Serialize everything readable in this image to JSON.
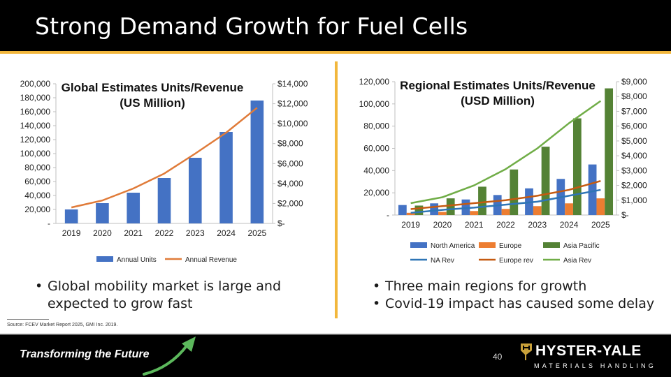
{
  "header": {
    "title": "Strong Demand Growth for Fuel Cells"
  },
  "left": {
    "bullets": [
      "Global mobility market is large and expected to grow fast"
    ]
  },
  "right": {
    "bullets": [
      "Three main regions for growth",
      "Covid-19 impact has caused some delay"
    ]
  },
  "source": "Source: FCEV Market Report 2025, GMI Inc. 2019.",
  "footer": {
    "tagline": "Transforming the Future",
    "page_number": "40",
    "logo_name": "HYSTER-YALE",
    "logo_sub": "MATERIALS HANDLING"
  },
  "colors": {
    "accent_gold": "#f2b73c",
    "bar_blue": "#4472c4",
    "bar_orange": "#ed7d31",
    "bar_green": "#548235",
    "line_orange": "#e07b39",
    "line_na": "#2e75b6",
    "line_europe": "#c55a11",
    "line_asia": "#70ad47",
    "arrow_green": "#5cb85c"
  },
  "chart_data": [
    {
      "type": "bar",
      "title": "Global Estimates Units/Revenue\n(US Million)",
      "categories": [
        "2019",
        "2020",
        "2021",
        "2022",
        "2023",
        "2024",
        "2025"
      ],
      "series": [
        {
          "name": "Annual Units",
          "kind": "bar",
          "axis": "left",
          "values": [
            20000,
            29000,
            44000,
            65000,
            94000,
            131000,
            176000
          ]
        },
        {
          "name": "Annual Revenue",
          "kind": "line",
          "axis": "right",
          "values": [
            1600,
            2300,
            3500,
            5000,
            7000,
            9100,
            11600
          ]
        }
      ],
      "ylim_left": [
        0,
        200000
      ],
      "ylim_right": [
        0,
        14000
      ],
      "left_ticks": [
        "-",
        "20,000",
        "40,000",
        "60,000",
        "80,000",
        "100,000",
        "120,000",
        "140,000",
        "160,000",
        "180,000",
        "200,000"
      ],
      "right_ticks": [
        "$-",
        "$2,000",
        "$4,000",
        "$6,000",
        "$8,000",
        "$10,000",
        "$12,000",
        "$14,000"
      ],
      "legend": "bottom"
    },
    {
      "type": "bar",
      "title": "Regional Estimates Units/Revenue\n(USD Million)",
      "categories": [
        "2019",
        "2020",
        "2021",
        "2022",
        "2023",
        "2024",
        "2025"
      ],
      "series": [
        {
          "name": "North America",
          "kind": "bar",
          "axis": "left",
          "values": [
            9000,
            10500,
            14000,
            18000,
            24000,
            32500,
            45500
          ]
        },
        {
          "name": "Europe",
          "kind": "bar",
          "axis": "left",
          "values": [
            2000,
            2800,
            3600,
            5500,
            8000,
            10500,
            15000
          ]
        },
        {
          "name": "Asia Pacific",
          "kind": "bar",
          "axis": "left",
          "values": [
            8500,
            15000,
            25500,
            41000,
            61500,
            87000,
            114000
          ]
        },
        {
          "name": "NA Rev",
          "kind": "line",
          "axis": "right",
          "values": [
            150,
            350,
            500,
            700,
            900,
            1300,
            1700
          ]
        },
        {
          "name": "Europe rev",
          "kind": "line",
          "axis": "right",
          "values": [
            400,
            600,
            800,
            1000,
            1300,
            1700,
            2300
          ]
        },
        {
          "name": "Asia Rev",
          "kind": "line",
          "axis": "right",
          "values": [
            800,
            1200,
            2000,
            3100,
            4500,
            6200,
            7700
          ]
        }
      ],
      "ylim_left": [
        0,
        120000
      ],
      "ylim_right": [
        0,
        9000
      ],
      "left_ticks": [
        "-",
        "20,000",
        "40,000",
        "60,000",
        "80,000",
        "100,000",
        "120,000"
      ],
      "right_ticks": [
        "$-",
        "$1,000",
        "$2,000",
        "$3,000",
        "$4,000",
        "$5,000",
        "$6,000",
        "$7,000",
        "$8,000",
        "$9,000"
      ],
      "legend": "bottom"
    }
  ]
}
